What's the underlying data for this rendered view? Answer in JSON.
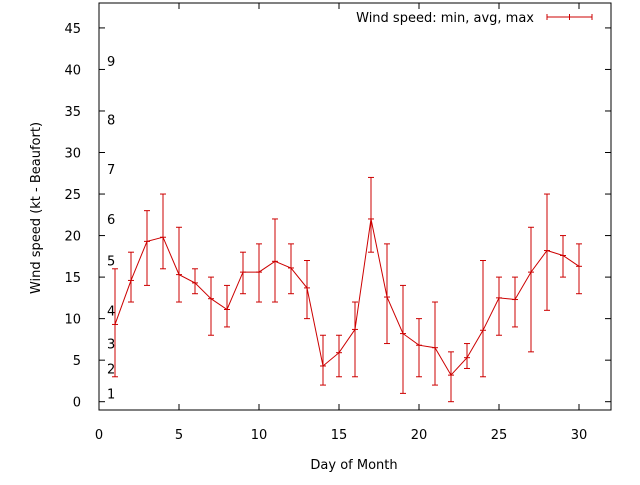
{
  "chart_data": {
    "type": "line",
    "title": "",
    "xlabel": "Day of Month",
    "ylabel": "Wind speed (kt - Beaufort)",
    "xlim": [
      0,
      32
    ],
    "ylim": [
      -1,
      48
    ],
    "x_ticks": [
      0,
      5,
      10,
      15,
      20,
      25,
      30
    ],
    "y_ticks": [
      0,
      5,
      10,
      15,
      20,
      25,
      30,
      35,
      40,
      45
    ],
    "grid": false,
    "legend_position": "top-right",
    "beaufort_labels": [
      {
        "label": "1",
        "at": 1
      },
      {
        "label": "2",
        "at": 4
      },
      {
        "label": "3",
        "at": 7
      },
      {
        "label": "4",
        "at": 11
      },
      {
        "label": "5",
        "at": 17
      },
      {
        "label": "6",
        "at": 22
      },
      {
        "label": "7",
        "at": 28
      },
      {
        "label": "8",
        "at": 34
      },
      {
        "label": "9",
        "at": 41
      }
    ],
    "series": [
      {
        "name": "Wind speed: min, avg, max",
        "color": "#cc0000",
        "x": [
          1,
          2,
          3,
          4,
          5,
          6,
          7,
          8,
          9,
          10,
          11,
          12,
          13,
          14,
          15,
          16,
          17,
          18,
          19,
          20,
          21,
          22,
          23,
          24,
          25,
          26,
          27,
          28,
          29,
          30
        ],
        "avg": [
          9.3,
          14.6,
          19.3,
          19.8,
          15.3,
          14.3,
          12.4,
          11.1,
          15.6,
          15.6,
          16.9,
          16.1,
          13.7,
          4.3,
          5.9,
          8.7,
          22.0,
          12.6,
          8.2,
          6.8,
          6.5,
          3.2,
          5.3,
          8.6,
          12.5,
          12.3,
          15.6,
          18.2,
          17.6,
          16.3
        ],
        "min": [
          3,
          12,
          14,
          16,
          12,
          13,
          8,
          9,
          13,
          12,
          12,
          13,
          10,
          2,
          3,
          3,
          18,
          7,
          1,
          3,
          2,
          0,
          4,
          3,
          8,
          9,
          6,
          11,
          15,
          13
        ],
        "max": [
          16,
          18,
          23,
          25,
          21,
          16,
          15,
          14,
          18,
          19,
          22,
          19,
          17,
          8,
          8,
          12,
          27,
          19,
          14,
          10,
          12,
          6,
          7,
          17,
          15,
          15,
          21,
          25,
          20,
          19
        ]
      }
    ]
  }
}
